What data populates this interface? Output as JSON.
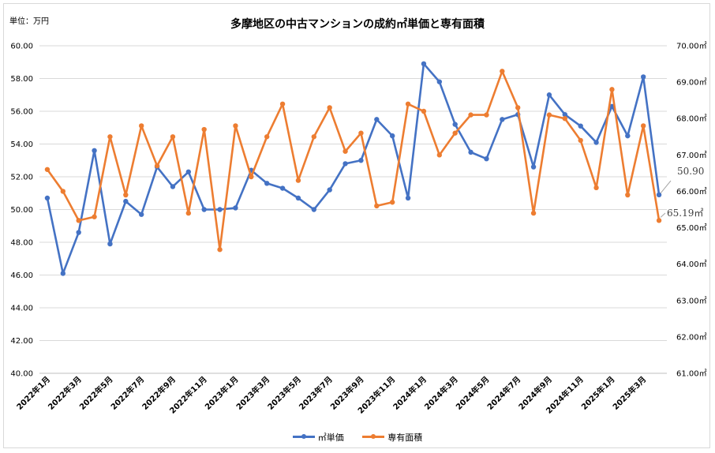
{
  "unit_label": "単位：万円",
  "colors": {
    "price": "#4472c4",
    "area": "#ed7d31",
    "grid": "#d9d9d9"
  },
  "chart_data": {
    "type": "line",
    "title": "多摩地区の中古マンションの成約㎡単価と専有面積",
    "x": [
      "2022年1月",
      "2022年2月",
      "2022年3月",
      "2022年4月",
      "2022年5月",
      "2022年6月",
      "2022年7月",
      "2022年8月",
      "2022年9月",
      "2022年10月",
      "2022年11月",
      "2022年12月",
      "2023年1月",
      "2023年2月",
      "2023年3月",
      "2023年4月",
      "2023年5月",
      "2023年6月",
      "2023年7月",
      "2023年8月",
      "2023年9月",
      "2023年10月",
      "2023年11月",
      "2023年12月",
      "2024年1月",
      "2024年2月",
      "2024年3月",
      "2024年4月",
      "2024年5月",
      "2024年6月",
      "2024年7月",
      "2024年8月",
      "2024年9月",
      "2024年10月",
      "2024年11月",
      "2024年12月",
      "2025年1月",
      "2025年2月",
      "2025年3月",
      "2025年4月"
    ],
    "x_tick_labels": [
      "2022年1月",
      "2022年3月",
      "2022年5月",
      "2022年7月",
      "2022年9月",
      "2022年11月",
      "2023年1月",
      "2023年3月",
      "2023年5月",
      "2023年7月",
      "2023年9月",
      "2023年11月",
      "2024年1月",
      "2024年3月",
      "2024年5月",
      "2024年7月",
      "2024年9月",
      "2024年11月",
      "2025年1月",
      "2025年3月"
    ],
    "y_left": {
      "min": 40,
      "max": 60,
      "step": 2,
      "tick_labels": [
        "40.00",
        "42.00",
        "44.00",
        "46.00",
        "48.00",
        "50.00",
        "52.00",
        "54.00",
        "56.00",
        "58.00",
        "60.00"
      ]
    },
    "y_right": {
      "min": 61,
      "max": 70,
      "step": 1,
      "tick_labels": [
        "61.00㎡",
        "62.00㎡",
        "63.00㎡",
        "64.00㎡",
        "65.00㎡",
        "66.00㎡",
        "67.00㎡",
        "68.00㎡",
        "69.00㎡",
        "70.00㎡"
      ]
    },
    "grid": true,
    "legend_position": "bottom",
    "series": [
      {
        "name": "㎡単価",
        "axis": "left",
        "values": [
          50.7,
          46.1,
          48.6,
          53.6,
          47.9,
          50.5,
          49.7,
          52.6,
          51.4,
          52.3,
          50.0,
          50.0,
          50.1,
          52.4,
          51.6,
          51.3,
          50.7,
          50.0,
          51.2,
          52.8,
          53.0,
          55.5,
          54.5,
          50.7,
          58.9,
          57.8,
          55.2,
          53.5,
          53.1,
          55.5,
          55.8,
          52.6,
          57.0,
          55.8,
          55.1,
          54.1,
          56.3,
          54.5,
          58.1,
          50.9
        ],
        "end_label": "50.90"
      },
      {
        "name": "専有面積",
        "axis": "right",
        "values": [
          66.6,
          66.0,
          65.2,
          65.3,
          67.5,
          65.9,
          67.8,
          66.7,
          67.5,
          65.4,
          67.7,
          64.4,
          67.8,
          66.4,
          67.5,
          68.4,
          66.3,
          67.5,
          68.3,
          67.1,
          67.6,
          65.6,
          65.7,
          68.4,
          68.2,
          67.0,
          67.6,
          68.1,
          68.1,
          69.3,
          68.3,
          65.4,
          68.1,
          68.0,
          67.4,
          66.1,
          68.8,
          65.9,
          67.8,
          65.2
        ],
        "end_label": "65.19㎡"
      }
    ]
  }
}
